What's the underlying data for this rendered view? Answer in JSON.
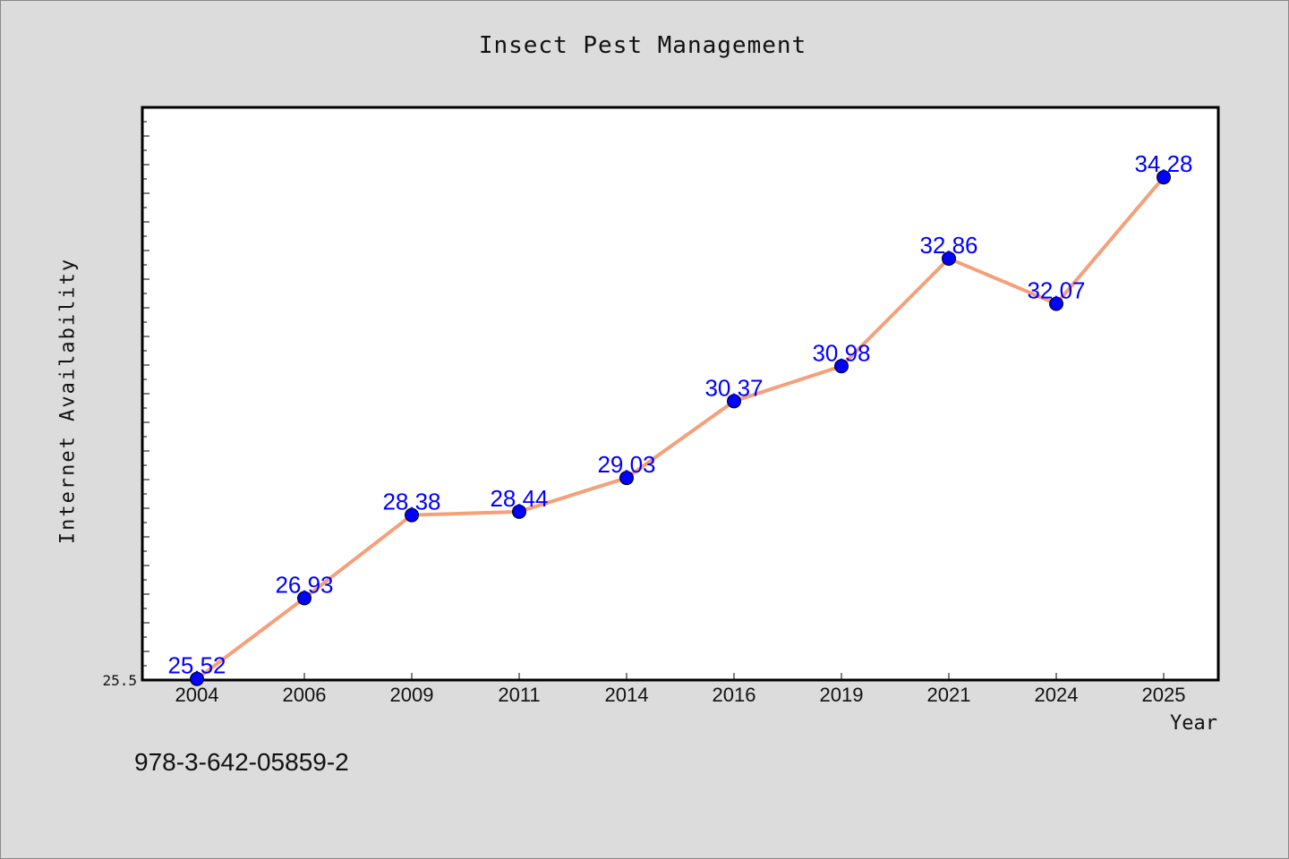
{
  "chart_data": {
    "type": "line",
    "title": "Insect Pest Management",
    "xlabel": "Year",
    "ylabel": "Internet Availability",
    "categories": [
      "2004",
      "2006",
      "2009",
      "2011",
      "2014",
      "2016",
      "2019",
      "2021",
      "2024",
      "2025"
    ],
    "series": [
      {
        "values": [
          25.52,
          26.93,
          28.38,
          28.44,
          29.03,
          30.37,
          30.98,
          32.86,
          32.07,
          34.28
        ],
        "labels": [
          "25.52",
          "26.93",
          "28.38",
          "28.44",
          "29.03",
          "30.37",
          "30.98",
          "32.86",
          "32.07",
          "34.28"
        ],
        "line_color": "#f4a07a",
        "marker_color": "#0000ff"
      }
    ],
    "ytick_labels": [
      "25.5"
    ],
    "ylim": [
      25.5,
      35.5
    ],
    "grid": false,
    "legend": false
  },
  "footer": {
    "isbn": "978-3-642-05859-2"
  },
  "colors": {
    "background": "#dcdcdc",
    "plot_background": "#ffffff",
    "line": "#f4a07a",
    "marker": "#0000ff",
    "data_label": "#0000ff"
  }
}
